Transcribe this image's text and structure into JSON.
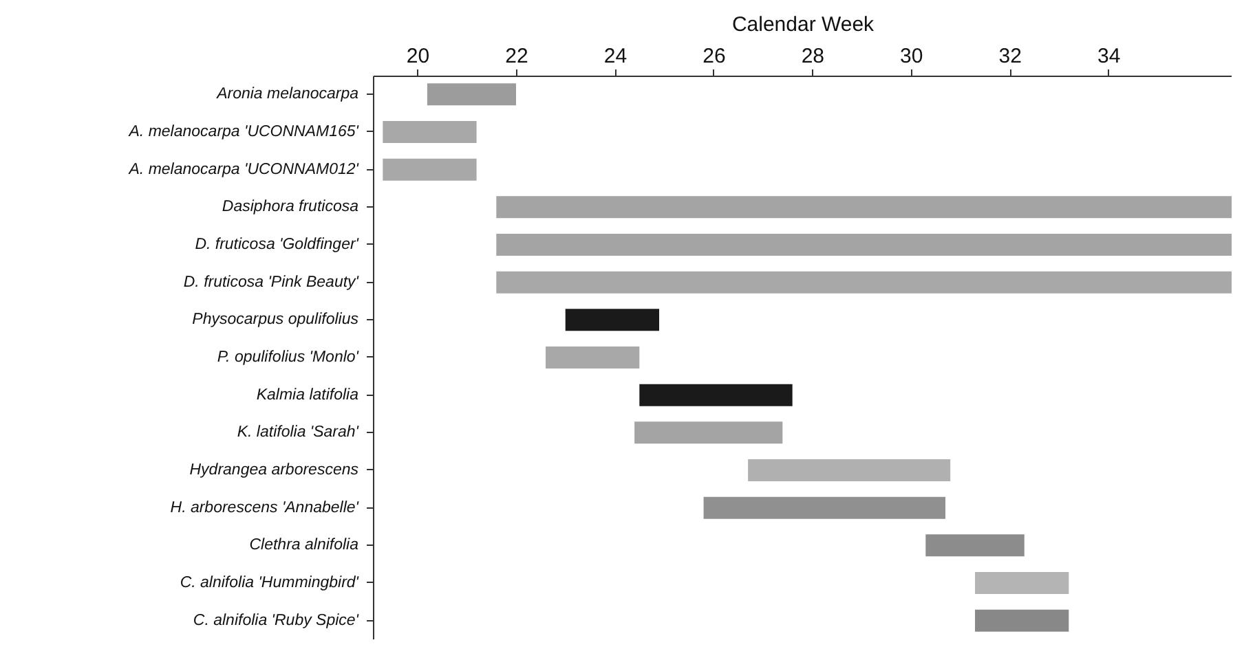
{
  "chart_data": {
    "type": "bar",
    "orientation": "horizontal",
    "xlabel": "Calendar Week",
    "categories": [
      "Aronia melanocarpa",
      "A. melanocarpa 'UCONNAM165'",
      "A. melanocarpa 'UCONNAM012'",
      "Dasiphora fruticosa",
      "D. fruticosa 'Goldfinger'",
      "D. fruticosa 'Pink Beauty'",
      "Physocarpus opulifolius",
      "P. opulifolius 'Monlo'",
      "Kalmia latifolia",
      "K. latifolia 'Sarah'",
      "Hydrangea arborescens",
      "H. arborescens 'Annabelle'",
      "Clethra alnifolia",
      "C. alnifolia 'Hummingbird'",
      "C. alnifolia 'Ruby Spice'"
    ],
    "base": [
      20.2,
      19.3,
      19.3,
      21.6,
      21.6,
      21.6,
      23.0,
      22.6,
      24.5,
      24.4,
      26.7,
      25.8,
      30.3,
      31.3,
      31.3
    ],
    "values": [
      1.8,
      1.9,
      1.9,
      14.9,
      14.9,
      14.9,
      1.9,
      1.9,
      3.1,
      3.0,
      4.1,
      4.9,
      2.0,
      1.9,
      1.9
    ],
    "colors": [
      "#9c9c9c",
      "#a8a8a8",
      "#a8a8a8",
      "#a4a4a4",
      "#a4a4a4",
      "#a8a8a8",
      "#1a1a1a",
      "#a8a8a8",
      "#1a1a1a",
      "#a4a4a4",
      "#b0b0b0",
      "#909090",
      "#8c8c8c",
      "#b4b4b4",
      "#888888"
    ],
    "xlim": [
      19.1,
      36.5
    ],
    "xticks": [
      20,
      22,
      24,
      26,
      28,
      30,
      32,
      34
    ],
    "grid": false
  }
}
